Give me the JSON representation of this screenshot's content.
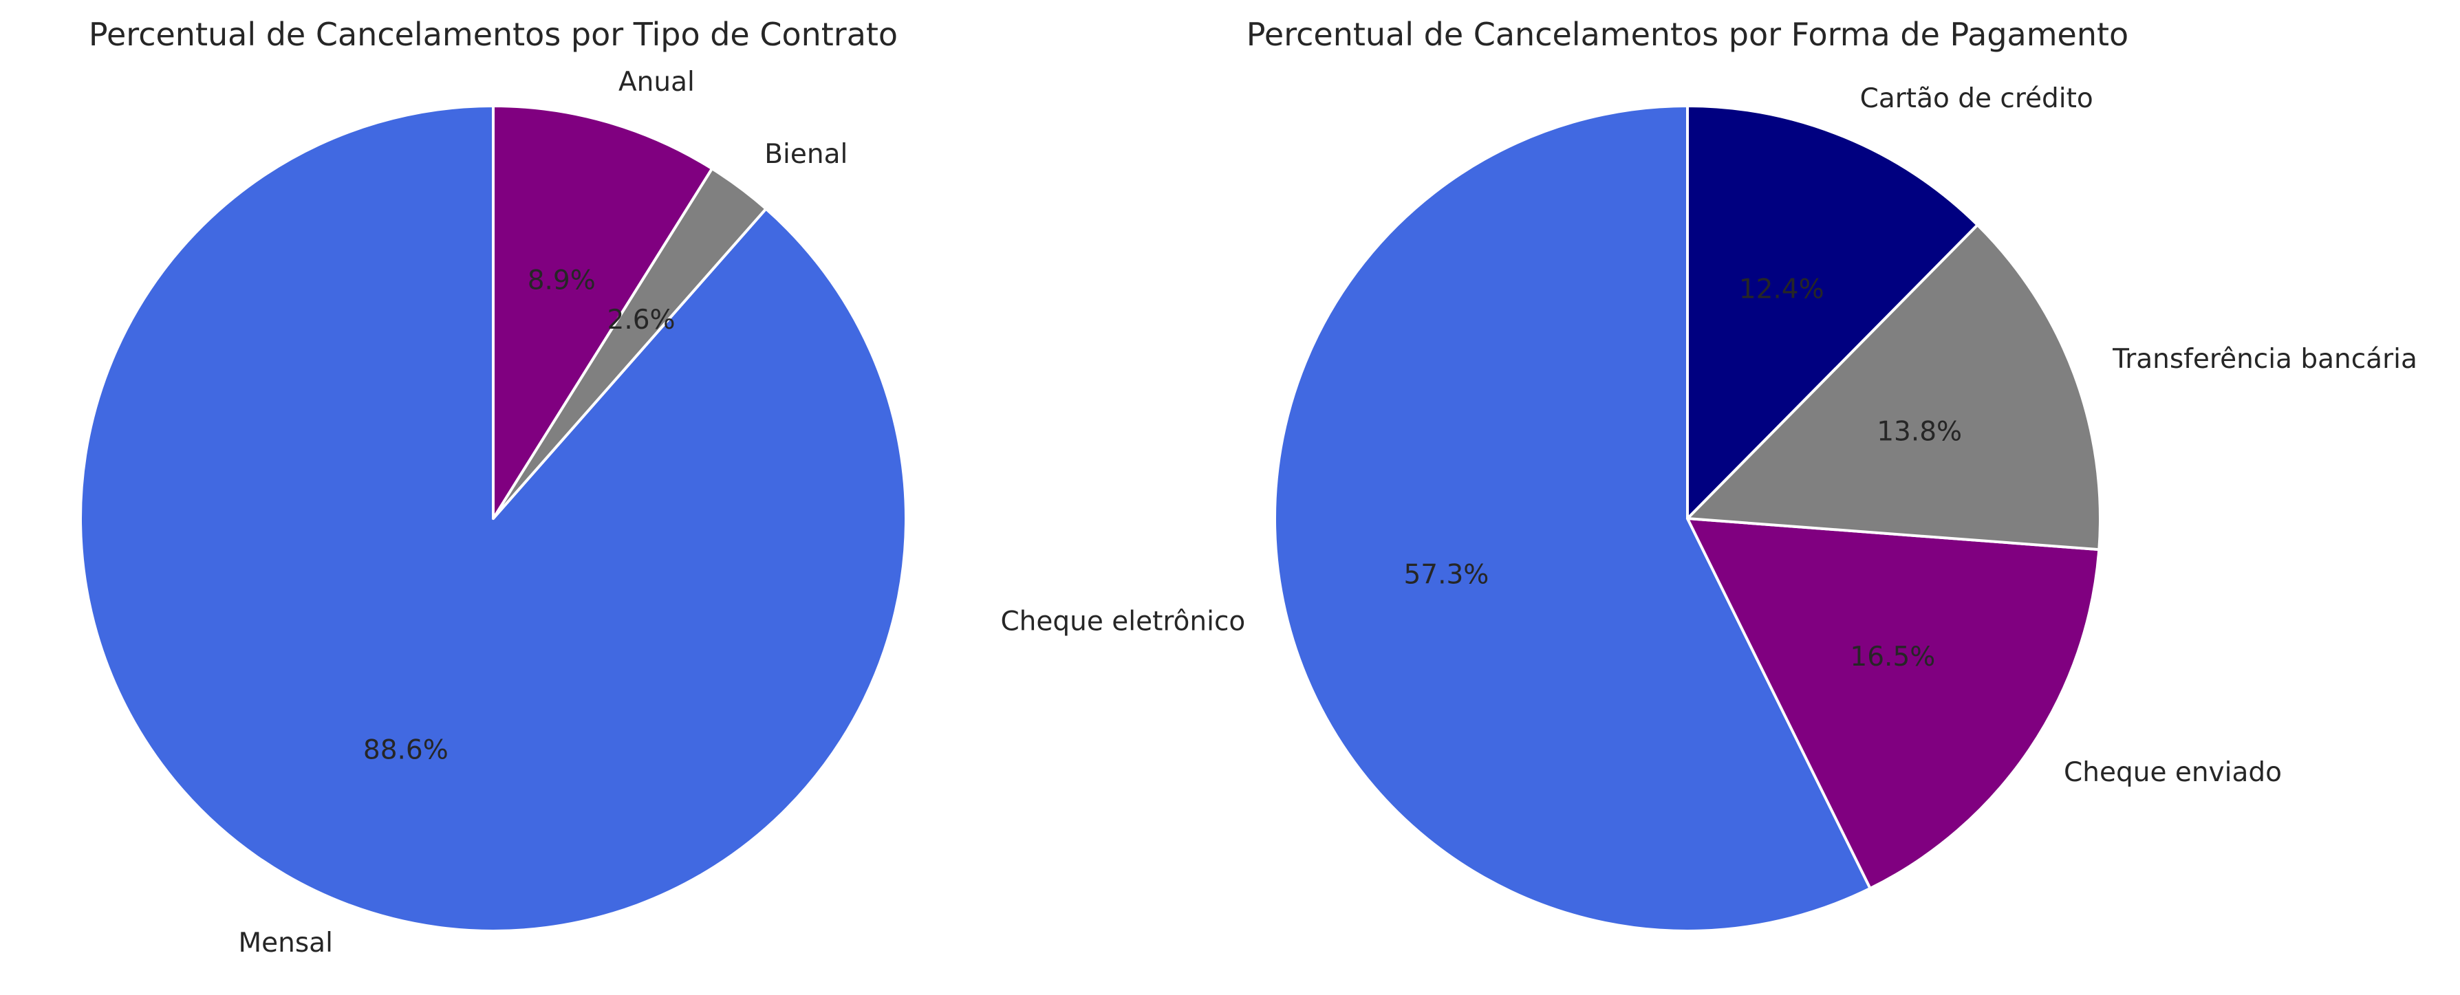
{
  "chart_data": [
    {
      "type": "pie",
      "title": "Percentual de Cancelamentos por Tipo de Contrato",
      "labels": [
        "Mensal",
        "Bienal",
        "Anual"
      ],
      "values": [
        88.6,
        2.6,
        8.9
      ],
      "percent_labels": [
        "88.6%",
        "2.6%",
        "8.9%"
      ],
      "colors": [
        "#4169E1",
        "#808080",
        "#800080"
      ],
      "start_angle_deg": 90,
      "direction": "counterclockwise",
      "legend": "none"
    },
    {
      "type": "pie",
      "title": "Percentual de Cancelamentos por Forma de Pagamento",
      "labels": [
        "Cheque eletrônico",
        "Cheque enviado",
        "Transferência bancária",
        "Cartão de crédito"
      ],
      "values": [
        57.3,
        16.5,
        13.8,
        12.4
      ],
      "percent_labels": [
        "57.3%",
        "16.5%",
        "13.8%",
        "12.4%"
      ],
      "colors": [
        "#4169E1",
        "#800080",
        "#808080",
        "#000080"
      ],
      "start_angle_deg": 90,
      "direction": "counterclockwise",
      "legend": "none"
    }
  ]
}
